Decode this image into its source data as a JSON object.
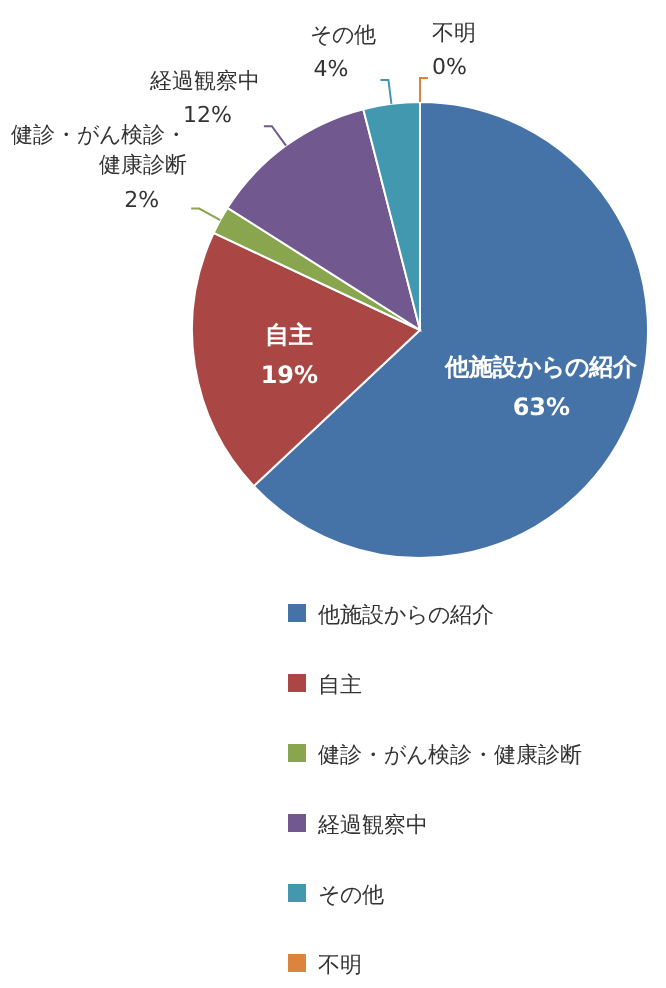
{
  "chart_data": {
    "type": "pie",
    "categories": [
      "他施設からの紹介",
      "自主",
      "健診・がん検診・健康診断",
      "経過観察中",
      "その他",
      "不明"
    ],
    "values": [
      63,
      19,
      2,
      12,
      4,
      0
    ],
    "colors": [
      "#4572a7",
      "#aa4643",
      "#89a54e",
      "#71588f",
      "#4198af",
      "#db843d"
    ],
    "value_labels": [
      "63%",
      "19%",
      "2%",
      "12%",
      "4%",
      "0%"
    ],
    "legend": "bottom"
  }
}
